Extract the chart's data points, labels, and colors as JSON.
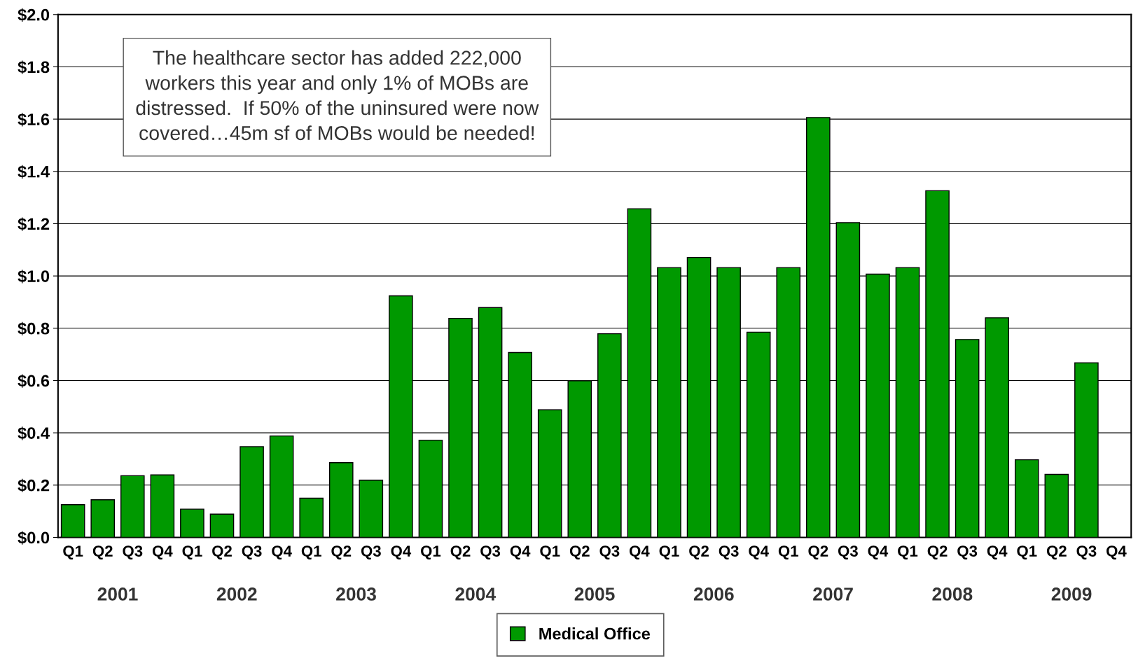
{
  "chart_data": {
    "type": "bar",
    "categories": [
      "Q1",
      "Q2",
      "Q3",
      "Q4",
      "Q1",
      "Q2",
      "Q3",
      "Q4",
      "Q1",
      "Q2",
      "Q3",
      "Q4",
      "Q1",
      "Q2",
      "Q3",
      "Q4",
      "Q1",
      "Q2",
      "Q3",
      "Q4",
      "Q1",
      "Q2",
      "Q3",
      "Q4",
      "Q1",
      "Q2",
      "Q3",
      "Q4",
      "Q1",
      "Q2",
      "Q3",
      "Q4",
      "Q1",
      "Q2",
      "Q3",
      "Q4"
    ],
    "series": [
      {
        "name": "Medical Office",
        "color": "#009900",
        "values": [
          0.125,
          0.144,
          0.236,
          0.239,
          0.108,
          0.089,
          0.347,
          0.388,
          0.15,
          0.286,
          0.219,
          0.924,
          0.372,
          0.838,
          0.879,
          0.707,
          0.488,
          0.599,
          0.779,
          1.257,
          1.032,
          1.071,
          1.032,
          0.785,
          1.032,
          1.606,
          1.204,
          1.007,
          1.032,
          1.326,
          0.757,
          0.84,
          0.297,
          0.241,
          0.668,
          null
        ]
      }
    ],
    "ylim": [
      0,
      2.0
    ],
    "yticks": [
      {
        "value": 0,
        "label": "$0.0"
      },
      {
        "value": 0.2,
        "label": "$0.2"
      },
      {
        "value": 0.4,
        "label": "$0.4"
      },
      {
        "value": 0.6,
        "label": "$0.6"
      },
      {
        "value": 0.8,
        "label": "$0.8"
      },
      {
        "value": 1.0,
        "label": "$1.0"
      },
      {
        "value": 1.2,
        "label": "$1.2"
      },
      {
        "value": 1.4,
        "label": "$1.4"
      },
      {
        "value": 1.6,
        "label": "$1.6"
      },
      {
        "value": 1.8,
        "label": "$1.8"
      },
      {
        "value": 2.0,
        "label": "$2.0"
      }
    ],
    "grid": "y",
    "legend": "bottom",
    "annotations": [
      "The healthcare sector has added 222,000\nworkers this year and only 1% of MOBs are\ndistressed.  If 50% of the uninsured were now\ncovered…45m sf of MOBs would be needed!",
      "2001",
      "2002",
      "2003",
      "2004",
      "2005",
      "2006",
      "2007",
      "2008",
      "2009"
    ]
  }
}
